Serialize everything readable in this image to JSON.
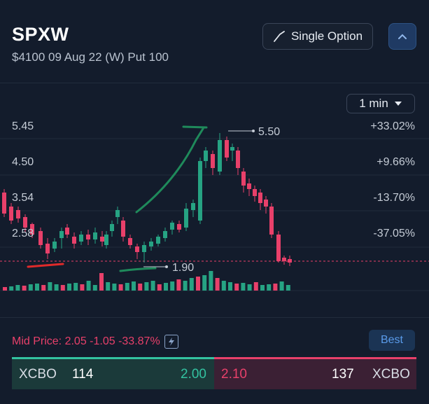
{
  "header": {
    "ticker": "SPXW",
    "subtitle": "$4100 09 Aug 22 (W) Put 100",
    "single_option_label": "Single Option"
  },
  "chart": {
    "interval": "1 min",
    "y_labels": [
      "5.45",
      "4.50",
      "3.54",
      "2.58"
    ],
    "pct_labels": [
      "+33.02%",
      "+9.66%",
      "-13.70%",
      "-37.05%"
    ],
    "high_label": "5.50",
    "low_label": "1.90"
  },
  "chart_data": {
    "type": "candlestick",
    "high": 5.5,
    "low": 1.9,
    "y_ticks": [
      5.45,
      4.5,
      3.54,
      2.58
    ],
    "pct_ticks": [
      "+33.02%",
      "+9.66%",
      "-13.70%",
      "-37.05%"
    ]
  },
  "quote": {
    "mid_price": "Mid Price: 2.05 -1.05 -33.87%",
    "best_label": "Best",
    "bid_exchange": "XCBO",
    "bid_size": "114",
    "bid_price": "2.00",
    "ask_price": "2.10",
    "ask_size": "137",
    "ask_exchange": "XCBO"
  },
  "colors": {
    "up": "#26a383",
    "down": "#e8406a",
    "background": "#131c2c"
  }
}
